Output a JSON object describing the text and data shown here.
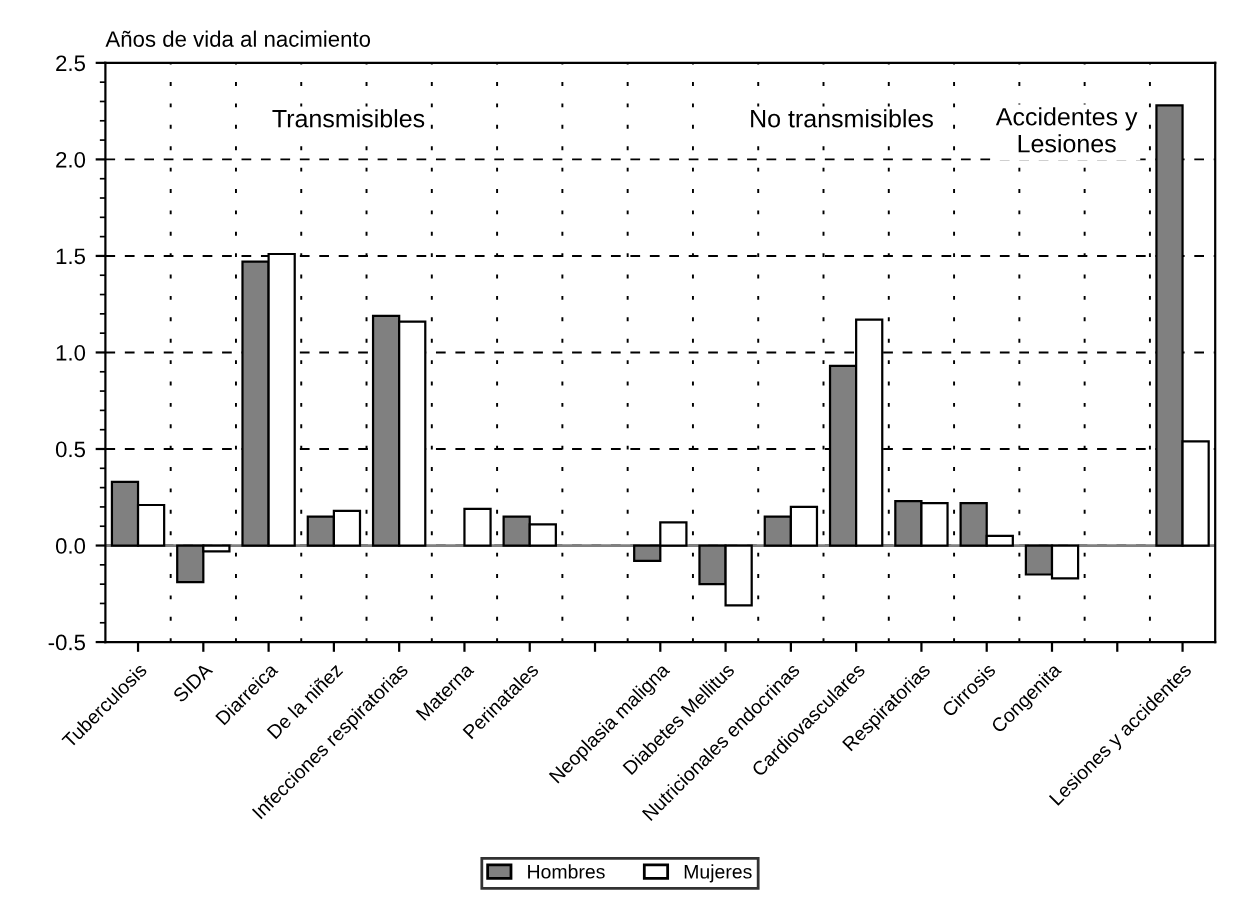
{
  "chart_data": {
    "type": "bar",
    "ylabel": "Años de vida al nacimiento",
    "categories": [
      "Tuberculosis",
      "SIDA",
      "Diarreica",
      "De la niñez",
      "Infecciones respiratorias",
      "Materna",
      "Perinatales",
      null,
      "Neoplasia maligna",
      "Diabetes Mellitus",
      "Nutricionales endocrinas",
      "Cardiovasculares",
      "Respiratorias",
      "Cirrosis",
      "Congenita",
      null,
      "Lesiones y accidentes"
    ],
    "series": [
      {
        "name": "Hombres",
        "color": "#808080",
        "values": [
          0.33,
          -0.19,
          1.47,
          0.15,
          1.19,
          null,
          0.15,
          null,
          -0.08,
          -0.2,
          0.15,
          0.93,
          0.23,
          0.22,
          -0.15,
          null,
          2.28
        ]
      },
      {
        "name": "Mujeres",
        "color": "#ffffff",
        "values": [
          0.21,
          -0.03,
          1.51,
          0.18,
          1.16,
          0.19,
          0.11,
          null,
          0.12,
          -0.31,
          0.2,
          1.17,
          0.22,
          0.05,
          -0.17,
          null,
          0.54
        ]
      }
    ],
    "ylim": [
      -0.5,
      2.5
    ],
    "yticks": [
      -0.5,
      {
        "value": 0,
        "label": "0.0"
      },
      0.5,
      {
        "value": 1,
        "label": "1.0"
      },
      1.5,
      {
        "value": 2,
        "label": "2.0"
      },
      2.5
    ],
    "ref_lines": [
      {
        "axis": "y",
        "value": 0,
        "color": "#808080"
      }
    ],
    "annotations": [
      "Transmisibles",
      "No transmisibles",
      "Accidentes y\nLesiones"
    ],
    "grid": true,
    "legend": "bottom"
  }
}
